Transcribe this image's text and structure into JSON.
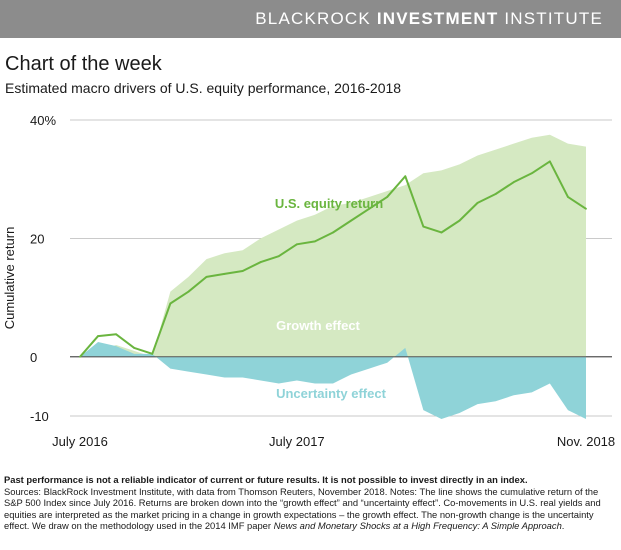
{
  "header": {
    "brand_light": "BLACKROCK",
    "brand_bold": "INVESTMENT",
    "brand_light_2": "INSTITUTE"
  },
  "kicker": "Chart of the week",
  "subtitle": "Estimated macro drivers of U.S. equity performance, 2016-2018",
  "footer": {
    "disclaimer": "Past performance is not a reliable indicator of current or future results. It is not possible to invest directly in an index.",
    "sources": "Sources: BlackRock Investment Institute, with data from Thomson Reuters, November 2018. Notes: The line shows the cumulative return of the S&P 500 Index since July 2016. Returns are broken down into the “growth effect” and “uncertainty effect”. Co-movements in U.S. real yields and equities are interpreted as the market pricing in a change in growth expectations – the growth effect. The non-growth change is the uncertainty effect. We draw on the methodology used in the 2014 IMF paper",
    "paper_title": "News and Monetary Shocks at a High Frequency: A Simple Approach",
    "sources_end": "."
  },
  "colors": {
    "banner": "#8c8c8c",
    "equity_line": "#6ab53f",
    "growth_fill": "#d5e9c2",
    "growth_label": "#ffffff",
    "uncertainty_fill": "#8fd3d8",
    "uncertainty_label": "#8fd3d8",
    "equity_label": "#6ab53f"
  },
  "chart_data": {
    "type": "area",
    "title": "",
    "xlabel": "",
    "ylabel": "Cumulative return",
    "x_ticks": [
      "July 2016",
      "July 2017",
      "Nov. 2018"
    ],
    "y_ticks": [
      "40%",
      "20",
      "0",
      "-10"
    ],
    "y_tick_values": [
      40,
      20,
      0,
      -10
    ],
    "ylim": [
      -10,
      40
    ],
    "grid": true,
    "legend": "inline labels",
    "annotations": {
      "equity": "U.S. equity return",
      "growth": "Growth effect",
      "uncertainty": "Uncertainty effect"
    },
    "x": [
      "2016-07",
      "2016-08",
      "2016-09",
      "2016-10",
      "2016-11",
      "2016-12",
      "2017-01",
      "2017-02",
      "2017-03",
      "2017-04",
      "2017-05",
      "2017-06",
      "2017-07",
      "2017-08",
      "2017-09",
      "2017-10",
      "2017-11",
      "2017-12",
      "2018-01",
      "2018-02",
      "2018-03",
      "2018-04",
      "2018-05",
      "2018-06",
      "2018-07",
      "2018-08",
      "2018-09",
      "2018-10",
      "2018-11"
    ],
    "series": [
      {
        "name": "U.S. equity return",
        "values": [
          0,
          3.5,
          3.8,
          1.5,
          0.5,
          9.0,
          11.0,
          13.5,
          14.0,
          14.5,
          16.0,
          17.0,
          19.0,
          19.5,
          21.0,
          23.0,
          25.0,
          27.0,
          30.5,
          22.0,
          21.0,
          23.0,
          26.0,
          27.5,
          29.5,
          31.0,
          33.0,
          27.0,
          25.0
        ]
      },
      {
        "name": "Growth effect",
        "values": [
          0,
          1.0,
          2.0,
          1.0,
          0,
          11.0,
          13.5,
          16.5,
          17.5,
          18.0,
          20.0,
          21.5,
          23.0,
          24.0,
          25.5,
          26.0,
          27.0,
          28.0,
          29.0,
          31.0,
          31.5,
          32.5,
          34.0,
          35.0,
          36.0,
          37.0,
          37.5,
          36.0,
          35.5
        ]
      },
      {
        "name": "Uncertainty effect",
        "values": [
          0,
          2.5,
          1.8,
          0.5,
          0.5,
          -2.0,
          -2.5,
          -3.0,
          -3.5,
          -3.5,
          -4.0,
          -4.5,
          -4.0,
          -4.5,
          -4.5,
          -3.0,
          -2.0,
          -1.0,
          1.5,
          -9.0,
          -10.5,
          -9.5,
          -8.0,
          -7.5,
          -6.5,
          -6.0,
          -4.5,
          -9.0,
          -10.5
        ]
      }
    ]
  }
}
